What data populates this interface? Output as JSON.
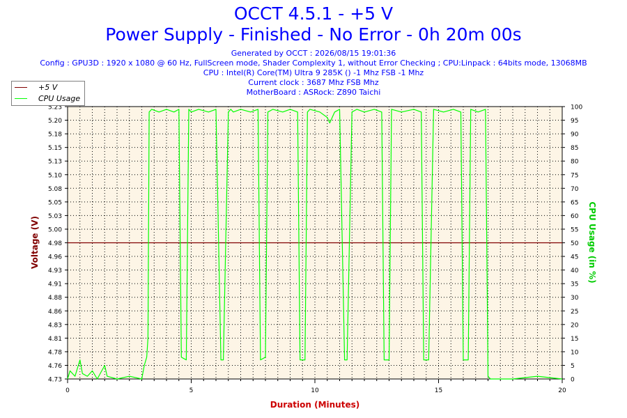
{
  "header": {
    "title_line1": "OCCT 4.5.1 - +5 V",
    "title_line2": "Power Supply - Finished - No Error - 0h 20m 00s",
    "generated": "Generated by OCCT : 2026/08/15 19:01:36",
    "config": "Config : GPU3D : 1920 x 1080 @ 60 Hz, FullScreen mode, Shader Complexity 1, without Error Checking ; CPU:Linpack : 64bits mode, 13068MB",
    "cpu": "CPU : Intel(R) Core(TM) Ultra 9 285K () -1 Mhz FSB -1 Mhz",
    "clock": "Current clock : 3687 Mhz FSB  Mhz",
    "motherboard": "MotherBoard : ASRock: Z890 Taichi"
  },
  "legend": [
    {
      "label": "+5 V",
      "color": "#800000"
    },
    {
      "label": "CPU Usage",
      "color": "#00ff00"
    }
  ],
  "colors": {
    "voltage": "#800000",
    "cpu": "#00ff00",
    "plot_background": "#fdf5e6",
    "title": "#0000ff",
    "x_axis_label": "#cc0000",
    "y_left_label": "#800000",
    "y_right_label": "#00cc00"
  },
  "chart_data": {
    "type": "line",
    "xlabel": "Duration (Minutes)",
    "ylabel": "Voltage (V)",
    "y2label": "CPU Usage (in %)",
    "xlim": [
      0,
      20
    ],
    "ylim": [
      4.73,
      5.23
    ],
    "y2lim": [
      0,
      100
    ],
    "xticks": [
      "0",
      "5",
      "10",
      "15",
      "20"
    ],
    "yticks": [
      "4.73",
      "4.76",
      "4.78",
      "4.81",
      "4.83",
      "4.86",
      "4.88",
      "4.91",
      "4.93",
      "4.96",
      "4.98",
      "5.00",
      "5.03",
      "5.05",
      "5.08",
      "5.10",
      "5.13",
      "5.15",
      "5.18",
      "5.20",
      "5.23"
    ],
    "y2ticks": [
      "0",
      "5",
      "10",
      "15",
      "20",
      "25",
      "30",
      "35",
      "40",
      "45",
      "50",
      "55",
      "60",
      "65",
      "70",
      "75",
      "80",
      "85",
      "90",
      "95",
      "100"
    ],
    "grid": true,
    "legend_position": "top-left",
    "series": [
      {
        "name": "+5 V",
        "axis": "left",
        "x": [
          0,
          20
        ],
        "values": [
          4.98,
          4.98
        ]
      },
      {
        "name": "CPU Usage",
        "axis": "right",
        "x": [
          0,
          0.1,
          0.3,
          0.5,
          0.6,
          0.8,
          1.0,
          1.2,
          1.5,
          1.6,
          2.0,
          2.5,
          3.0,
          3.1,
          3.2,
          3.25,
          3.3,
          3.4,
          3.7,
          4.0,
          4.3,
          4.5,
          4.6,
          4.8,
          4.9,
          5.0,
          5.3,
          5.7,
          6.0,
          6.2,
          6.3,
          6.5,
          6.6,
          6.7,
          7.0,
          7.4,
          7.7,
          7.8,
          8.0,
          8.1,
          8.3,
          8.7,
          9.0,
          9.3,
          9.4,
          9.6,
          9.7,
          9.8,
          10.2,
          10.5,
          10.6,
          10.8,
          11.0,
          11.2,
          11.3,
          11.5,
          11.7,
          12.0,
          12.4,
          12.7,
          12.8,
          13.0,
          13.1,
          13.5,
          14.0,
          14.3,
          14.4,
          14.6,
          14.8,
          15.2,
          15.6,
          15.9,
          16.0,
          16.2,
          16.3,
          16.6,
          16.9,
          17.0,
          17.1,
          18.0,
          19.0,
          20.0
        ],
        "values": [
          0,
          3,
          1,
          7,
          2,
          1,
          3,
          0,
          5,
          1,
          0,
          1,
          0,
          5,
          8,
          15,
          98,
          99,
          98,
          99,
          98,
          99,
          8,
          7,
          99,
          98,
          99,
          98,
          99,
          7,
          7,
          98,
          99,
          98,
          99,
          98,
          99,
          7,
          8,
          98,
          99,
          98,
          99,
          98,
          7,
          7,
          98,
          99,
          98,
          96,
          94,
          98,
          99,
          7,
          7,
          98,
          99,
          98,
          99,
          98,
          7,
          7,
          99,
          98,
          99,
          98,
          7,
          7,
          99,
          98,
          99,
          98,
          7,
          7,
          99,
          98,
          99,
          1,
          0,
          0,
          1,
          0
        ]
      }
    ]
  }
}
